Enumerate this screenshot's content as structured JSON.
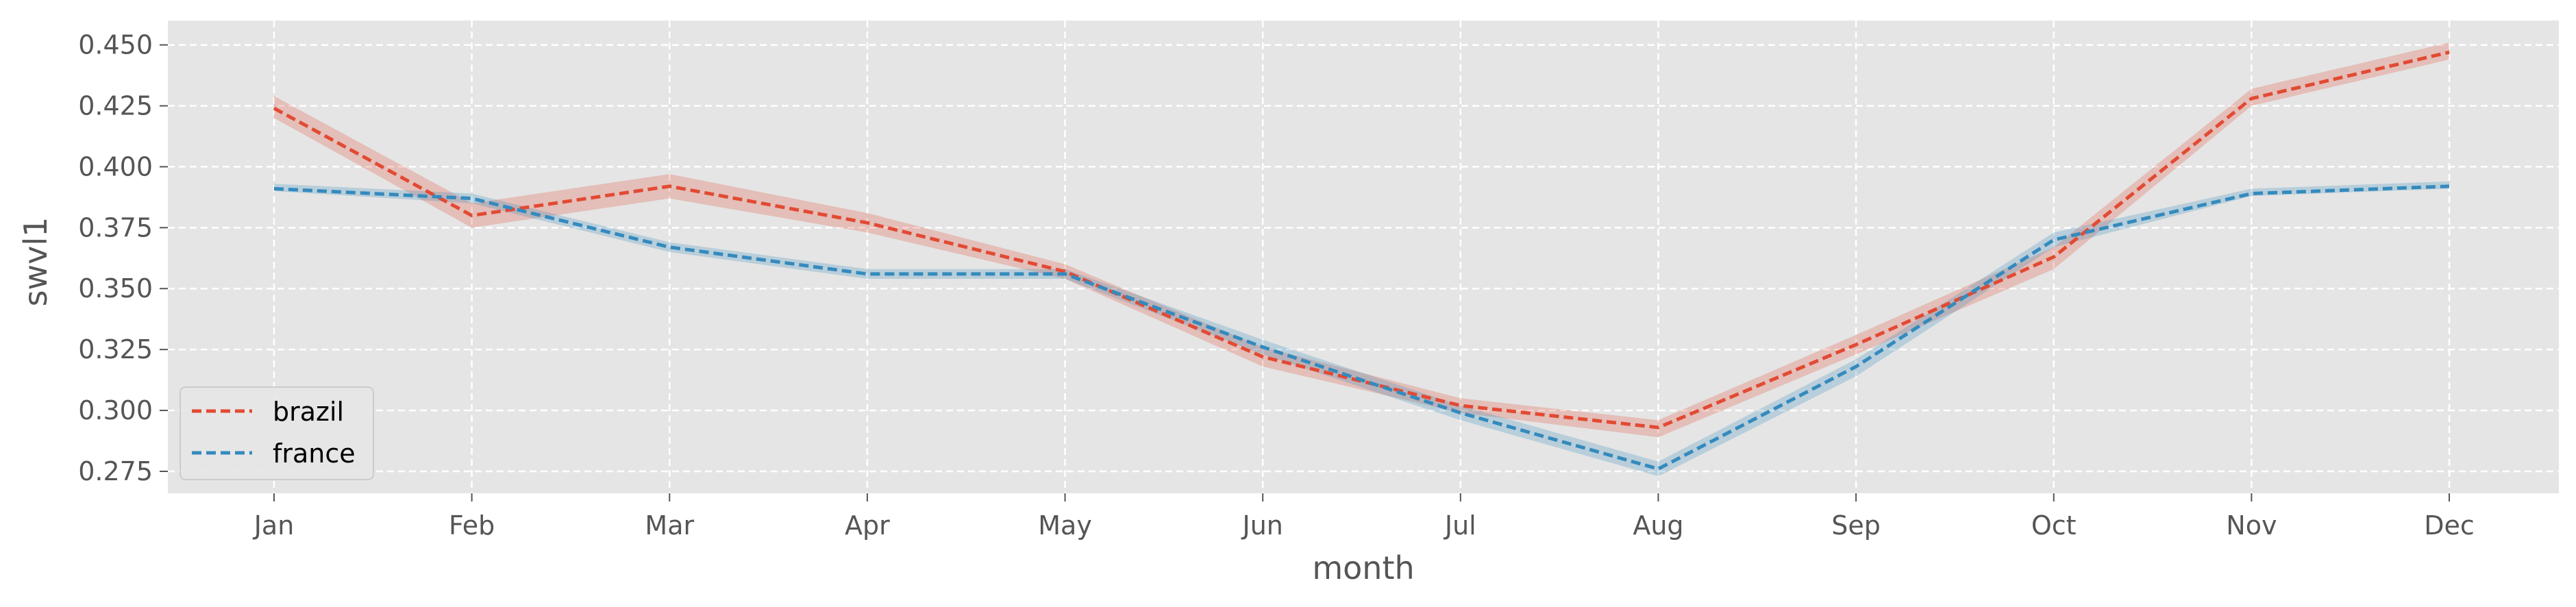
{
  "chart_data": {
    "type": "line",
    "xlabel": "month",
    "ylabel": "swvl1",
    "categories": [
      "Jan",
      "Feb",
      "Mar",
      "Apr",
      "May",
      "Jun",
      "Jul",
      "Aug",
      "Sep",
      "Oct",
      "Nov",
      "Dec"
    ],
    "yticks": [
      "0.275",
      "0.300",
      "0.325",
      "0.350",
      "0.375",
      "0.400",
      "0.425",
      "0.450"
    ],
    "ylim": [
      0.266,
      0.46
    ],
    "grid": true,
    "legend_position": "lower-left",
    "series": [
      {
        "name": "brazil",
        "color": "#E24A33",
        "line_style": "dashed",
        "values": [
          0.424,
          0.38,
          0.392,
          0.377,
          0.357,
          0.322,
          0.302,
          0.293,
          0.327,
          0.363,
          0.428,
          0.447
        ],
        "ci_lower": [
          0.42,
          0.375,
          0.387,
          0.373,
          0.354,
          0.318,
          0.299,
          0.289,
          0.323,
          0.358,
          0.425,
          0.444
        ],
        "ci_upper": [
          0.429,
          0.385,
          0.397,
          0.381,
          0.36,
          0.326,
          0.305,
          0.296,
          0.331,
          0.367,
          0.432,
          0.451
        ]
      },
      {
        "name": "france",
        "color": "#348ABD",
        "line_style": "dashed",
        "values": [
          0.391,
          0.387,
          0.367,
          0.356,
          0.356,
          0.326,
          0.299,
          0.276,
          0.318,
          0.37,
          0.389,
          0.392
        ],
        "ci_lower": [
          0.39,
          0.385,
          0.365,
          0.354,
          0.354,
          0.323,
          0.296,
          0.273,
          0.314,
          0.367,
          0.388,
          0.391
        ],
        "ci_upper": [
          0.393,
          0.389,
          0.369,
          0.358,
          0.358,
          0.329,
          0.302,
          0.279,
          0.321,
          0.373,
          0.391,
          0.394
        ]
      }
    ]
  }
}
